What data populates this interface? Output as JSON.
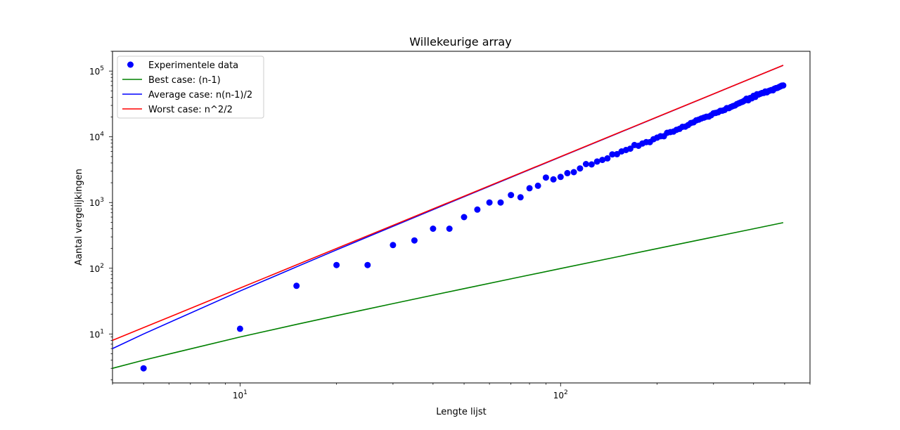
{
  "chart_data": {
    "type": "line",
    "title": "Willekeurige array",
    "xlabel": "Lengte lijst",
    "ylabel": "Aantal vergelijkingen",
    "xscale": "log",
    "yscale": "log",
    "xlim": [
      4,
      600
    ],
    "ylim": [
      1.8,
      200000
    ],
    "xticks": [
      {
        "value": 10,
        "base": "10",
        "exp": "1"
      },
      {
        "value": 100,
        "base": "10",
        "exp": "2"
      }
    ],
    "yticks": [
      {
        "value": 10,
        "base": "10",
        "exp": "1"
      },
      {
        "value": 100,
        "base": "10",
        "exp": "2"
      },
      {
        "value": 1000,
        "base": "10",
        "exp": "3"
      },
      {
        "value": 10000,
        "base": "10",
        "exp": "4"
      },
      {
        "value": 100000,
        "base": "10",
        "exp": "5"
      }
    ],
    "legend_position": "upper-left",
    "scatter": {
      "name": "Experimentele data",
      "color": "#0000ff",
      "points": [
        [
          5,
          3
        ],
        [
          10,
          12
        ],
        [
          15,
          54
        ],
        [
          20,
          112
        ],
        [
          25,
          112
        ],
        [
          30,
          225
        ],
        [
          35,
          265
        ],
        [
          40,
          400
        ],
        [
          45,
          400
        ],
        [
          50,
          600
        ],
        [
          55,
          780
        ],
        [
          60,
          1000
        ],
        [
          65,
          1000
        ],
        [
          70,
          1300
        ],
        [
          75,
          1200
        ],
        [
          80,
          1650
        ],
        [
          85,
          1800
        ],
        [
          90,
          2400
        ],
        [
          95,
          2250
        ],
        [
          100,
          2450
        ],
        [
          105,
          2800
        ],
        [
          110,
          2900
        ],
        [
          115,
          3300
        ],
        [
          120,
          3850
        ],
        [
          125,
          3800
        ],
        [
          130,
          4200
        ],
        [
          135,
          4450
        ],
        [
          140,
          4700
        ],
        [
          145,
          5400
        ],
        [
          150,
          5450
        ],
        [
          155,
          6000
        ],
        [
          160,
          6300
        ],
        [
          165,
          6600
        ],
        [
          170,
          7500
        ],
        [
          175,
          7300
        ],
        [
          180,
          7900
        ],
        [
          185,
          8300
        ],
        [
          190,
          8300
        ],
        [
          195,
          9200
        ],
        [
          200,
          9700
        ],
        [
          205,
          10200
        ],
        [
          210,
          10200
        ],
        [
          215,
          11500
        ],
        [
          220,
          11800
        ],
        [
          225,
          12000
        ],
        [
          230,
          12800
        ],
        [
          235,
          13200
        ],
        [
          240,
          14200
        ],
        [
          245,
          14300
        ],
        [
          250,
          15100
        ],
        [
          255,
          16200
        ],
        [
          260,
          16600
        ],
        [
          265,
          17800
        ],
        [
          270,
          18300
        ],
        [
          275,
          19000
        ],
        [
          280,
          19600
        ],
        [
          285,
          20200
        ],
        [
          290,
          20300
        ],
        [
          295,
          21300
        ],
        [
          300,
          22800
        ],
        [
          305,
          23100
        ],
        [
          310,
          23600
        ],
        [
          315,
          24800
        ],
        [
          320,
          25000
        ],
        [
          325,
          25600
        ],
        [
          330,
          27300
        ],
        [
          335,
          27300
        ],
        [
          340,
          28500
        ],
        [
          345,
          29300
        ],
        [
          350,
          30000
        ],
        [
          355,
          31500
        ],
        [
          360,
          32400
        ],
        [
          365,
          33400
        ],
        [
          370,
          34200
        ],
        [
          375,
          35600
        ],
        [
          380,
          38000
        ],
        [
          385,
          36000
        ],
        [
          390,
          38900
        ],
        [
          395,
          38500
        ],
        [
          400,
          42000
        ],
        [
          405,
          40500
        ],
        [
          410,
          44500
        ],
        [
          415,
          44000
        ],
        [
          420,
          45200
        ],
        [
          425,
          46400
        ],
        [
          430,
          46500
        ],
        [
          435,
          48800
        ],
        [
          440,
          47500
        ],
        [
          445,
          49500
        ],
        [
          450,
          50500
        ],
        [
          455,
          51500
        ],
        [
          460,
          51000
        ],
        [
          465,
          54000
        ],
        [
          470,
          55000
        ],
        [
          475,
          55500
        ],
        [
          480,
          57000
        ],
        [
          485,
          58500
        ],
        [
          490,
          60000
        ],
        [
          495,
          60500
        ]
      ]
    },
    "series": [
      {
        "name": "Best case: (n-1)",
        "color": "#008000",
        "formula": "n-1"
      },
      {
        "name": "Average case: n(n-1)/2",
        "color": "#0000ff",
        "formula": "n(n-1)/2"
      },
      {
        "name": "Worst case: n^2/2",
        "color": "#ff0000",
        "formula": "n^2/2"
      }
    ],
    "line_x": [
      4,
      5,
      10,
      15,
      20,
      30,
      50,
      75,
      100,
      150,
      200,
      300,
      400,
      495
    ]
  }
}
